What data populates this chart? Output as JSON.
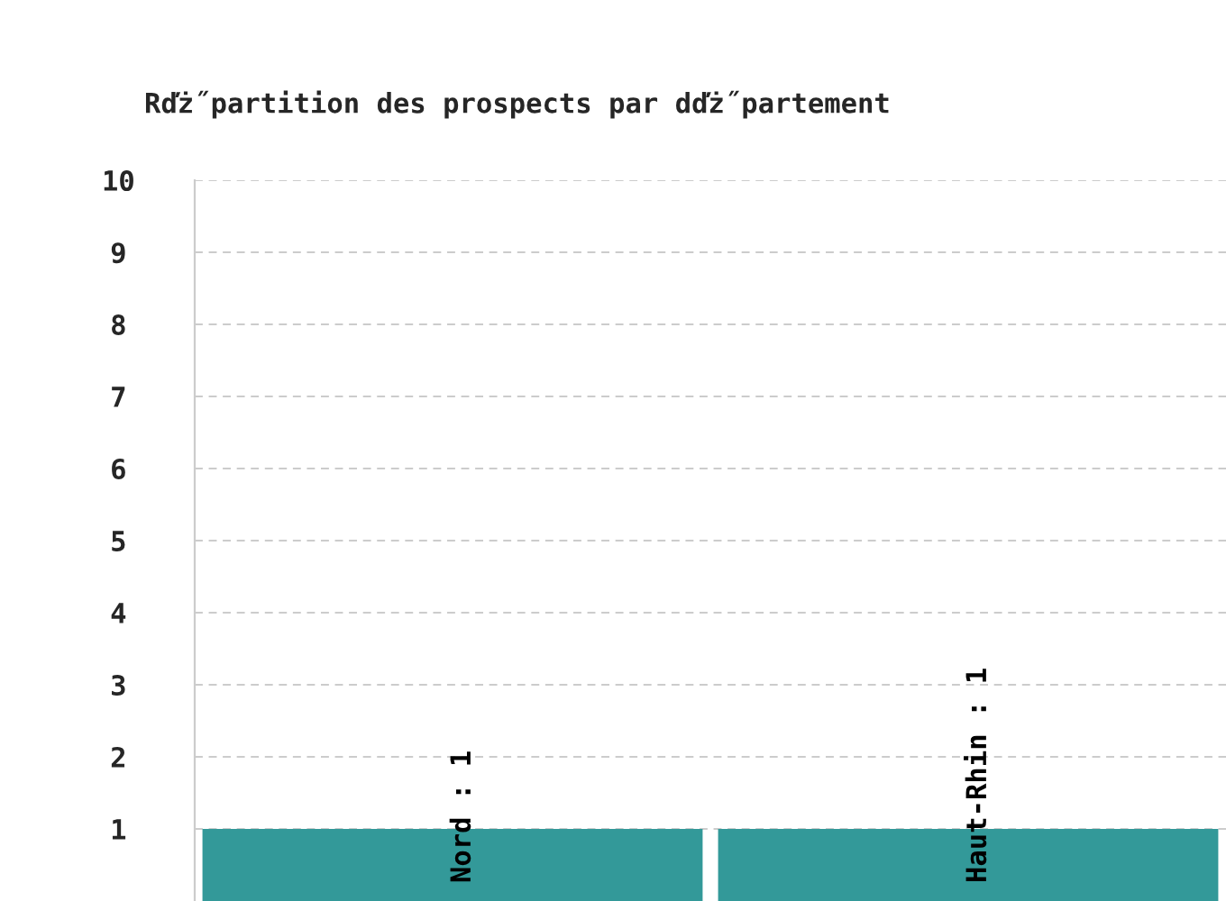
{
  "chart_data": {
    "type": "bar",
    "title": "Rďż˝partition des prospects par dďż˝partement",
    "categories": [
      null,
      null
    ],
    "values": [
      1,
      1
    ],
    "value_labels": [
      "Nord : 1",
      "Haut-Rhin : 1"
    ],
    "color": "#339999",
    "ylim": [
      0,
      10
    ],
    "yticks": [
      1,
      2,
      3,
      4,
      5,
      6,
      7,
      8,
      9,
      10
    ],
    "grid": "y"
  }
}
